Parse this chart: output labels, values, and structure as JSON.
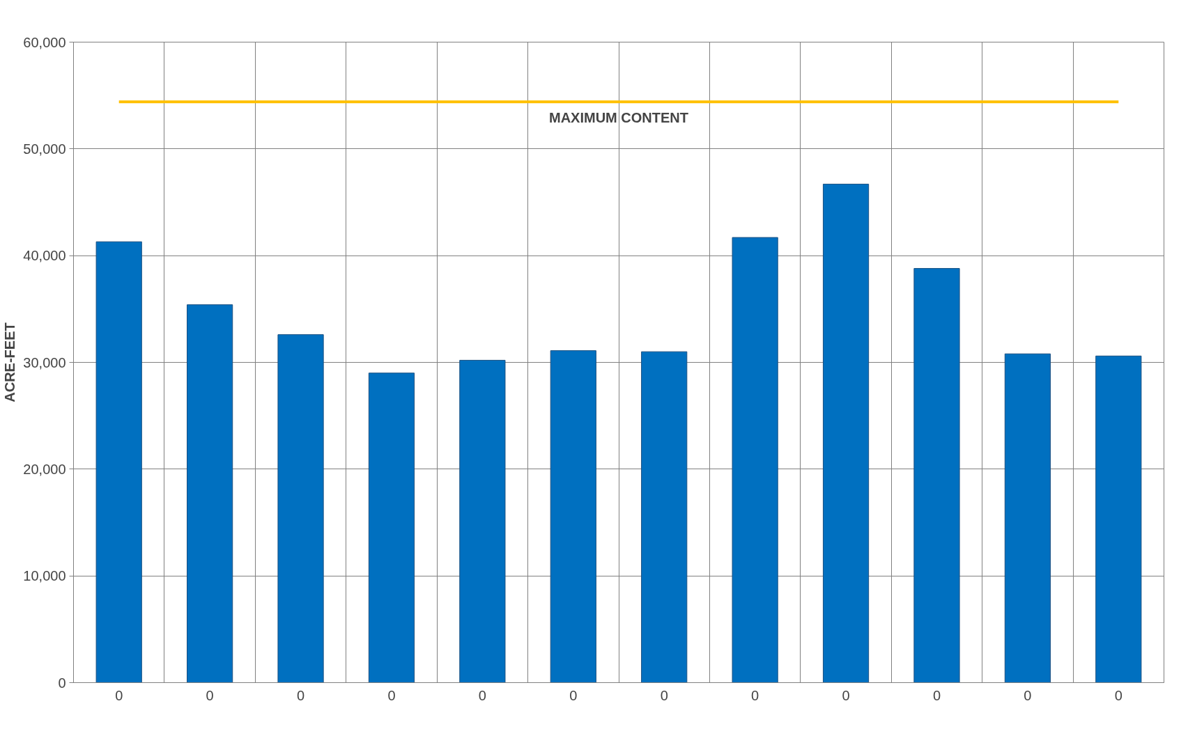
{
  "chart_data": {
    "type": "bar",
    "ylabel": "ACRE-FEET",
    "categories": [
      "0",
      "0",
      "0",
      "0",
      "0",
      "0",
      "0",
      "0",
      "0",
      "0",
      "0",
      "0"
    ],
    "values": [
      41300,
      35400,
      32600,
      29000,
      30200,
      31100,
      31000,
      41700,
      46700,
      38800,
      30800,
      30600
    ],
    "color": "#0070c0",
    "ylim": [
      0,
      60000
    ],
    "yticks": [
      {
        "value": 0,
        "label": "0"
      },
      {
        "value": 10000,
        "label": "10,000"
      },
      {
        "value": 20000,
        "label": "20,000"
      },
      {
        "value": 30000,
        "label": "30,000"
      },
      {
        "value": 40000,
        "label": "40,000"
      },
      {
        "value": 50000,
        "label": "50,000"
      },
      {
        "value": 60000,
        "label": "60,000"
      }
    ],
    "ref_lines": [
      {
        "axis": "y",
        "value": 54400,
        "label": "MAXIMUM CONTENT",
        "color": "#ffc000"
      }
    ],
    "grid": true
  }
}
